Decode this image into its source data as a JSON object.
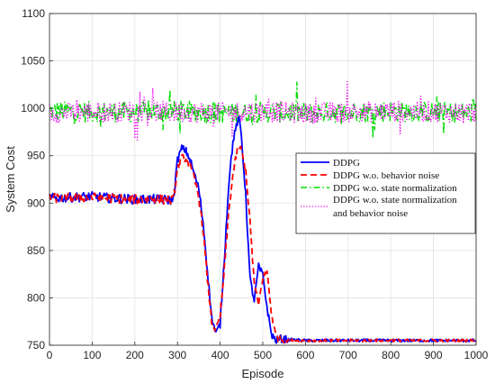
{
  "chart_data": {
    "type": "line",
    "xlabel": "Episode",
    "ylabel": "System Cost",
    "xlim": [
      0,
      1000
    ],
    "ylim": [
      750,
      1100
    ],
    "xticks": [
      0,
      100,
      200,
      300,
      400,
      500,
      600,
      700,
      800,
      900,
      1000
    ],
    "yticks": [
      750,
      800,
      850,
      900,
      950,
      1000,
      1050,
      1100
    ],
    "grid": true,
    "legend_position": "right",
    "series": [
      {
        "name": "DDPG",
        "color": "#0000ff",
        "style": "solid",
        "x": [
          0,
          50,
          100,
          150,
          200,
          250,
          290,
          300,
          310,
          320,
          330,
          340,
          350,
          360,
          370,
          380,
          390,
          400,
          410,
          420,
          430,
          440,
          445,
          450,
          460,
          470,
          480,
          490,
          500,
          510,
          520,
          530,
          540,
          560,
          600,
          700,
          800,
          900,
          1000
        ],
        "y": [
          905,
          906,
          907,
          905,
          904,
          904,
          903,
          945,
          958,
          955,
          945,
          930,
          915,
          880,
          830,
          780,
          762,
          772,
          842,
          920,
          965,
          985,
          988,
          970,
          908,
          820,
          797,
          833,
          824,
          790,
          762,
          755,
          757,
          756,
          755,
          755,
          755,
          755,
          755
        ]
      },
      {
        "name": "DDPG w.o. behavior noise",
        "color": "#ff0000",
        "style": "dashed",
        "x": [
          0,
          50,
          100,
          150,
          200,
          250,
          290,
          300,
          310,
          320,
          330,
          340,
          350,
          360,
          370,
          380,
          390,
          400,
          410,
          420,
          430,
          440,
          445,
          450,
          460,
          470,
          480,
          490,
          500,
          510,
          520,
          530,
          540,
          560,
          600,
          700,
          800,
          900,
          1000
        ],
        "y": [
          905,
          906,
          906,
          905,
          904,
          904,
          903,
          935,
          948,
          946,
          938,
          925,
          906,
          872,
          820,
          775,
          766,
          780,
          830,
          890,
          930,
          955,
          960,
          955,
          935,
          880,
          815,
          792,
          822,
          828,
          785,
          760,
          756,
          755,
          755,
          755,
          755,
          755,
          755
        ]
      },
      {
        "name": "DDPG w.o. state normalization",
        "color": "#00dd00",
        "style": "dashdot",
        "x": [
          0,
          100,
          200,
          300,
          400,
          500,
          600,
          700,
          800,
          900,
          1000
        ],
        "y": [
          997,
          996,
          996,
          997,
          995,
          996,
          995,
          996,
          997,
          996,
          995
        ]
      },
      {
        "name": "DDPG w.o. state normalization and behavior noise",
        "color": "#ee00ee",
        "style": "dotted",
        "x": [
          0,
          100,
          200,
          300,
          400,
          500,
          600,
          700,
          800,
          900,
          1000
        ],
        "y": [
          995,
          996,
          997,
          996,
          996,
          997,
          995,
          996,
          997,
          996,
          996
        ]
      }
    ]
  },
  "legend": {
    "entries": [
      {
        "label_lines": [
          "DDPG"
        ]
      },
      {
        "label_lines": [
          "DDPG w.o. behavior noise"
        ]
      },
      {
        "label_lines": [
          "DDPG w.o. state normalization"
        ]
      },
      {
        "label_lines": [
          "DDPG w.o. state normalization",
          "and behavior noise"
        ]
      }
    ]
  }
}
